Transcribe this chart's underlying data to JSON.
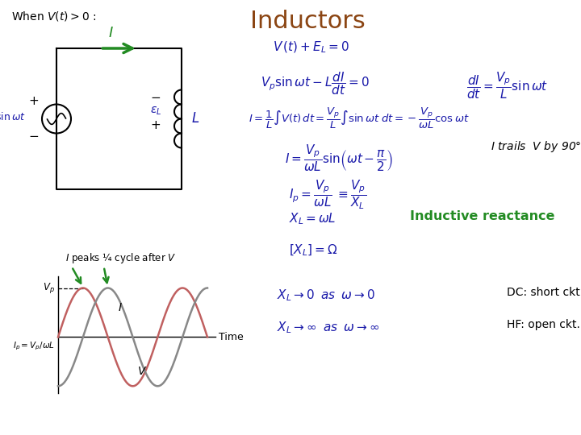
{
  "title": "Inductors",
  "title_color": "#8B4513",
  "bg_color": "#ffffff",
  "text_color_blue": "#1a1aaa",
  "text_color_black": "#000000",
  "text_color_green": "#228B22",
  "when_text": "When $V(t) > 0$ :",
  "eq1": "$V\\,(t)+E_L=0$",
  "eq2": "$V_p\\sin\\omega t - L\\dfrac{dI}{dt}=0$",
  "eq2r": "$\\dfrac{dI}{dt}=\\dfrac{V_p}{L}\\sin\\omega t$",
  "eq3": "$I=\\dfrac{1}{L}\\int V(t)\\,dt=\\dfrac{V_p}{L}\\int\\sin\\omega t\\;dt=-\\dfrac{V_p}{\\omega L}\\cos\\omega t$",
  "eq4": "$I=\\dfrac{V_p}{\\omega L}\\sin\\!\\left(\\omega t-\\dfrac{\\pi}{2}\\right)$",
  "eq4r": "$I$ trails  $V$ by 90°",
  "eq5": "$I_p=\\dfrac{V_p}{\\omega L}\\;\\equiv\\dfrac{V_p}{X_L}$",
  "eq6": "$X_L=\\omega L$",
  "eq6r": "Inductive reactance",
  "eq7": "$\\left[X_L\\right]=\\Omega$",
  "eq8": "$X_L\\rightarrow 0\\;\\;as\\;\\;\\omega\\rightarrow 0$",
  "eq8r": "DC: short ckt.",
  "eq9": "$X_L\\rightarrow\\infty\\;\\;as\\;\\;\\omega\\rightarrow\\infty$",
  "eq9r": "HF: open ckt.",
  "peaks_label": "$I$ peaks ¼ cycle after $V$"
}
